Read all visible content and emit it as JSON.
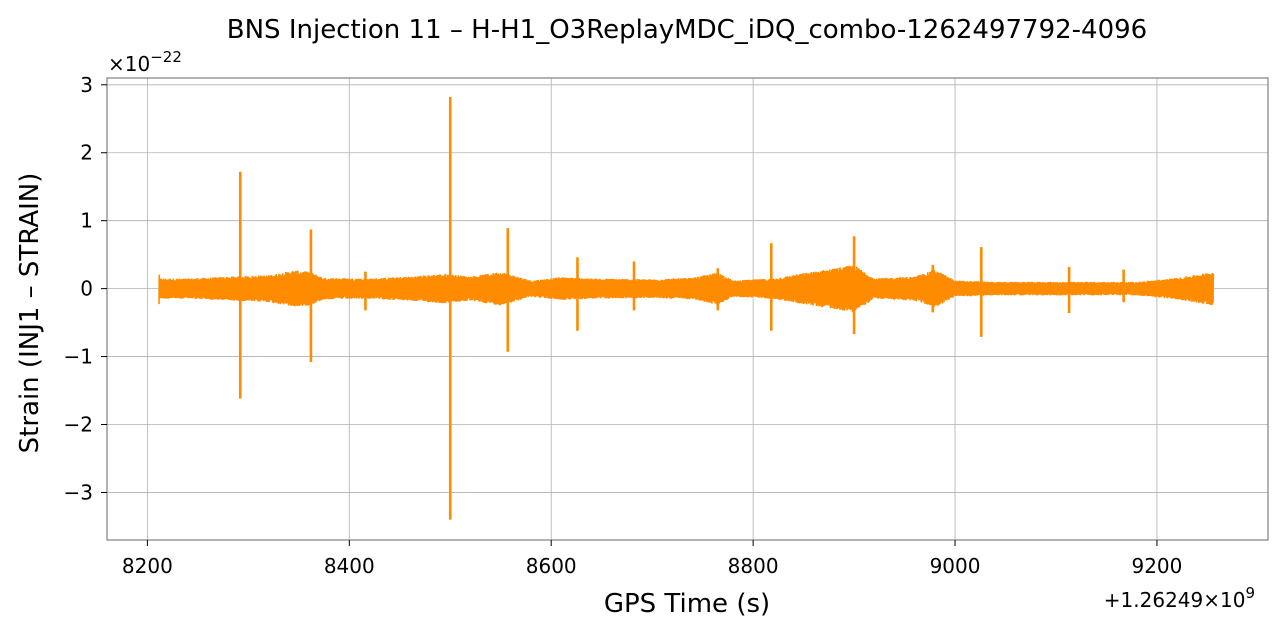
{
  "chart_data": {
    "type": "line",
    "title": "BNS Injection 11 – H-H1_O3ReplayMDC_iDQ_combo-1262497792-4096",
    "xlabel": "GPS Time (s)",
    "ylabel": "Strain (INJ1 – STRAIN)",
    "x_offset_label": "+1.26249×10",
    "x_offset_exponent": "9",
    "y_scale_label": "×10",
    "y_scale_exponent": "−22",
    "xlim": [
      8160,
      9310
    ],
    "ylim": [
      -3.7,
      3.1
    ],
    "x_ticks": [
      8200,
      8400,
      8600,
      8800,
      9000,
      9200
    ],
    "x_tick_labels": [
      "8200",
      "8400",
      "8600",
      "8800",
      "9000",
      "9200"
    ],
    "y_ticks": [
      -3,
      -2,
      -1,
      0,
      1,
      2,
      3
    ],
    "y_tick_labels": [
      "−3",
      "−2",
      "−1",
      "0",
      "1",
      "2",
      "3"
    ],
    "grid": true,
    "color": "#ff8c00",
    "series": [
      {
        "x_range": [
          8212,
          9256
        ],
        "envelope": [
          [
            8212,
            -0.15,
            0.15
          ],
          [
            8240,
            -0.15,
            0.15
          ],
          [
            8270,
            -0.17,
            0.17
          ],
          [
            8285,
            -0.18,
            0.18
          ],
          [
            8320,
            -0.2,
            0.2
          ],
          [
            8345,
            -0.27,
            0.27
          ],
          [
            8360,
            -0.25,
            0.25
          ],
          [
            8375,
            -0.16,
            0.16
          ],
          [
            8420,
            -0.15,
            0.15
          ],
          [
            8460,
            -0.18,
            0.18
          ],
          [
            8495,
            -0.22,
            0.22
          ],
          [
            8520,
            -0.18,
            0.18
          ],
          [
            8550,
            -0.25,
            0.25
          ],
          [
            8580,
            -0.12,
            0.12
          ],
          [
            8610,
            -0.17,
            0.17
          ],
          [
            8640,
            -0.15,
            0.15
          ],
          [
            8700,
            -0.14,
            0.14
          ],
          [
            8740,
            -0.16,
            0.16
          ],
          [
            8765,
            -0.24,
            0.24
          ],
          [
            8780,
            -0.12,
            0.12
          ],
          [
            8820,
            -0.15,
            0.15
          ],
          [
            8850,
            -0.23,
            0.23
          ],
          [
            8880,
            -0.3,
            0.3
          ],
          [
            8900,
            -0.35,
            0.35
          ],
          [
            8920,
            -0.15,
            0.15
          ],
          [
            8960,
            -0.18,
            0.18
          ],
          [
            8980,
            -0.28,
            0.28
          ],
          [
            9000,
            -0.12,
            0.12
          ],
          [
            9040,
            -0.1,
            0.1
          ],
          [
            9100,
            -0.1,
            0.1
          ],
          [
            9150,
            -0.1,
            0.1
          ],
          [
            9180,
            -0.1,
            0.1
          ],
          [
            9220,
            -0.16,
            0.16
          ],
          [
            9256,
            -0.25,
            0.25
          ]
        ],
        "spikes": [
          [
            8292,
            -1.62,
            1.72
          ],
          [
            8362,
            -1.08,
            0.87
          ],
          [
            8416,
            -0.32,
            0.25
          ],
          [
            8500,
            -3.4,
            2.82
          ],
          [
            8557,
            -0.93,
            0.89
          ],
          [
            8626,
            -0.62,
            0.46
          ],
          [
            8682,
            -0.32,
            0.4
          ],
          [
            8765,
            -0.32,
            0.3
          ],
          [
            8818,
            -0.62,
            0.67
          ],
          [
            8900,
            -0.67,
            0.77
          ],
          [
            8978,
            -0.35,
            0.35
          ],
          [
            9026,
            -0.71,
            0.61
          ],
          [
            9113,
            -0.36,
            0.32
          ],
          [
            9167,
            -0.2,
            0.28
          ]
        ]
      }
    ]
  }
}
